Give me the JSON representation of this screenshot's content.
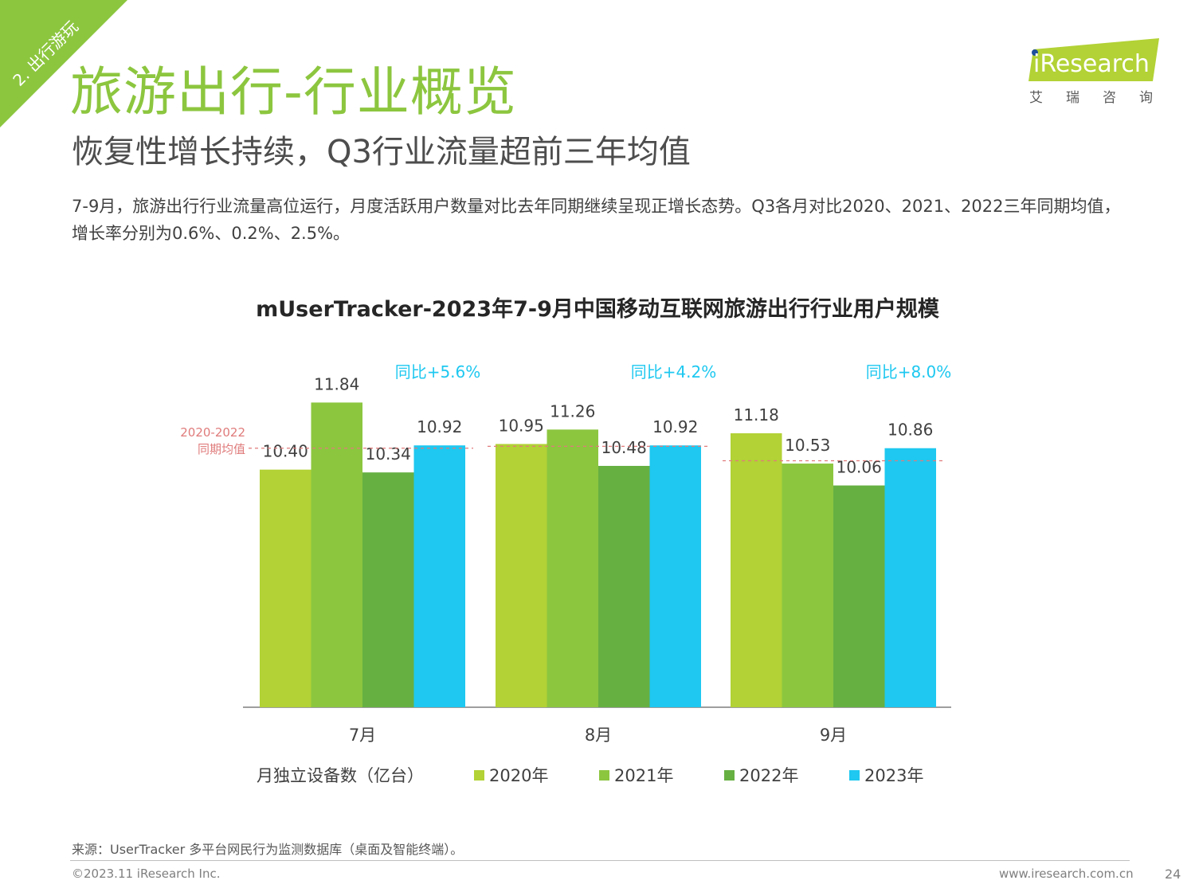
{
  "section_tag": "2. 出行游玩",
  "header": {
    "title": "旅游出行-行业概览",
    "subtitle": "恢复性增长持续，Q3行业流量超前三年均值"
  },
  "summary": "7-9月，旅游出行行业流量高位运行，月度活跃用户数量对比去年同期继续呈现正增长态势。Q3各月对比2020、2021、2022三年同期均值，增长率分别为0.6%、0.2%、2.5%。",
  "logo": {
    "brand": "iResearch",
    "sub": "艾瑞咨询"
  },
  "chart_data": {
    "type": "bar",
    "title": "mUserTracker-2023年7-9月中国移动互联网旅游出行行业用户规模",
    "ylabel": "月独立设备数（亿台）",
    "categories": [
      "7月",
      "8月",
      "9月"
    ],
    "series": [
      {
        "name": "2020年",
        "values": [
          10.4,
          10.95,
          11.18
        ],
        "color": "#b2d235"
      },
      {
        "name": "2021年",
        "values": [
          11.84,
          11.26,
          10.53
        ],
        "color": "#8cc63f"
      },
      {
        "name": "2022年",
        "values": [
          10.34,
          10.48,
          10.06
        ],
        "color": "#66b042"
      },
      {
        "name": "2023年",
        "values": [
          10.92,
          10.92,
          10.86
        ],
        "color": "#1ec8f0"
      }
    ],
    "value_labels": [
      [
        "10.40",
        "11.84",
        "10.34",
        "10.92"
      ],
      [
        "10.95",
        "11.26",
        "10.48",
        "10.92"
      ],
      [
        "11.18",
        "10.53",
        "10.06",
        "10.86"
      ]
    ],
    "yoy_labels": [
      "同比+5.6%",
      "同比+4.2%",
      "同比+8.0%"
    ],
    "reference_line": {
      "label_line1": "2020-2022",
      "label_line2": "同期均值",
      "values": [
        10.86,
        10.9,
        10.59
      ],
      "color": "#e07b7b"
    },
    "grid": false,
    "legend_position": "bottom"
  },
  "footer": {
    "source": "来源：UserTracker 多平台网民行为监测数据库（桌面及智能终端）。",
    "copyright": "©2023.11 iResearch Inc.",
    "site": "www.iresearch.com.cn",
    "page": "24"
  },
  "colors": {
    "accent": "#8cc63f",
    "yoy_text": "#1ec8f0",
    "axis": "#7f7f7f"
  }
}
